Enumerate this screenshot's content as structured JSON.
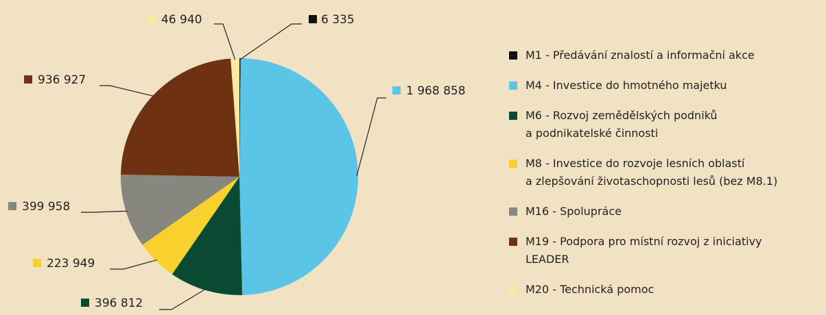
{
  "chart_data": {
    "type": "pie",
    "series": [
      {
        "name": "M1 - Předávání znalostí a informační akce",
        "color": "#111111",
        "values": [
          6335
        ],
        "value_labels": [
          "6 335"
        ]
      },
      {
        "name": "M4 - Investice do hmotného majetku",
        "color": "#5bc5e8",
        "values": [
          1968858
        ],
        "value_labels": [
          "1 968 858"
        ]
      },
      {
        "name": "M6 - Rozvoj zemědělských podniků\na podnikatelské činnosti",
        "color": "#0b4a32",
        "values": [
          396812
        ],
        "value_labels": [
          "396 812"
        ]
      },
      {
        "name": "M8 - Investice do rozvoje lesních oblastí\na zlepšování životaschopnosti lesů (bez M8.1)",
        "color": "#f9d12e",
        "values": [
          223949
        ],
        "value_labels": [
          "223 949"
        ]
      },
      {
        "name": "M16 - Spolupráce",
        "color": "#878780",
        "values": [
          399958
        ],
        "value_labels": [
          "399 958"
        ]
      },
      {
        "name": "M19 - Podpora pro místní rozvoj z iniciativy\nLEADER",
        "color": "#6e3213",
        "values": [
          936927
        ],
        "value_labels": [
          "936 927"
        ]
      },
      {
        "name": "M20 - Technická pomoc",
        "color": "#fbe9a1",
        "values": [
          46940
        ],
        "value_labels": [
          "46 940"
        ]
      }
    ]
  }
}
